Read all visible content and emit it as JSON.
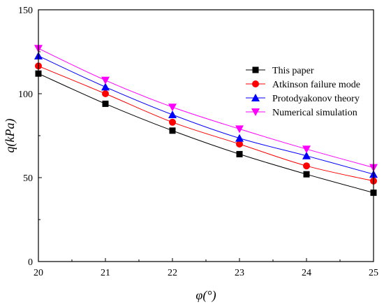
{
  "chart_data": {
    "type": "line",
    "xlabel": "φ(°)",
    "ylabel": "q(kPa)",
    "xlim": [
      20,
      25
    ],
    "ylim": [
      0,
      150
    ],
    "x_ticks": [
      "20",
      "21",
      "22",
      "23",
      "24",
      "25"
    ],
    "y_ticks": [
      "0",
      "50",
      "100",
      "150"
    ],
    "grid": false,
    "legend_position": "top-right",
    "x": [
      20,
      21,
      22,
      23,
      24,
      25
    ],
    "series": [
      {
        "name": "This paper",
        "color": "#000000",
        "marker": "square",
        "values": [
          112,
          94,
          78,
          64,
          52,
          41
        ]
      },
      {
        "name": "Atkinson failure mode",
        "color": "#ff0000",
        "marker": "circle",
        "values": [
          116.5,
          100,
          83,
          70,
          57,
          48
        ]
      },
      {
        "name": "Protodyakonov theory",
        "color": "#0000ff",
        "marker": "triangle-up",
        "values": [
          122.5,
          104,
          87.5,
          73.5,
          63,
          52
        ]
      },
      {
        "name": "Numerical simulation",
        "color": "#ff00ff",
        "marker": "triangle-down",
        "values": [
          127,
          108,
          92,
          79,
          67,
          56
        ]
      }
    ]
  }
}
